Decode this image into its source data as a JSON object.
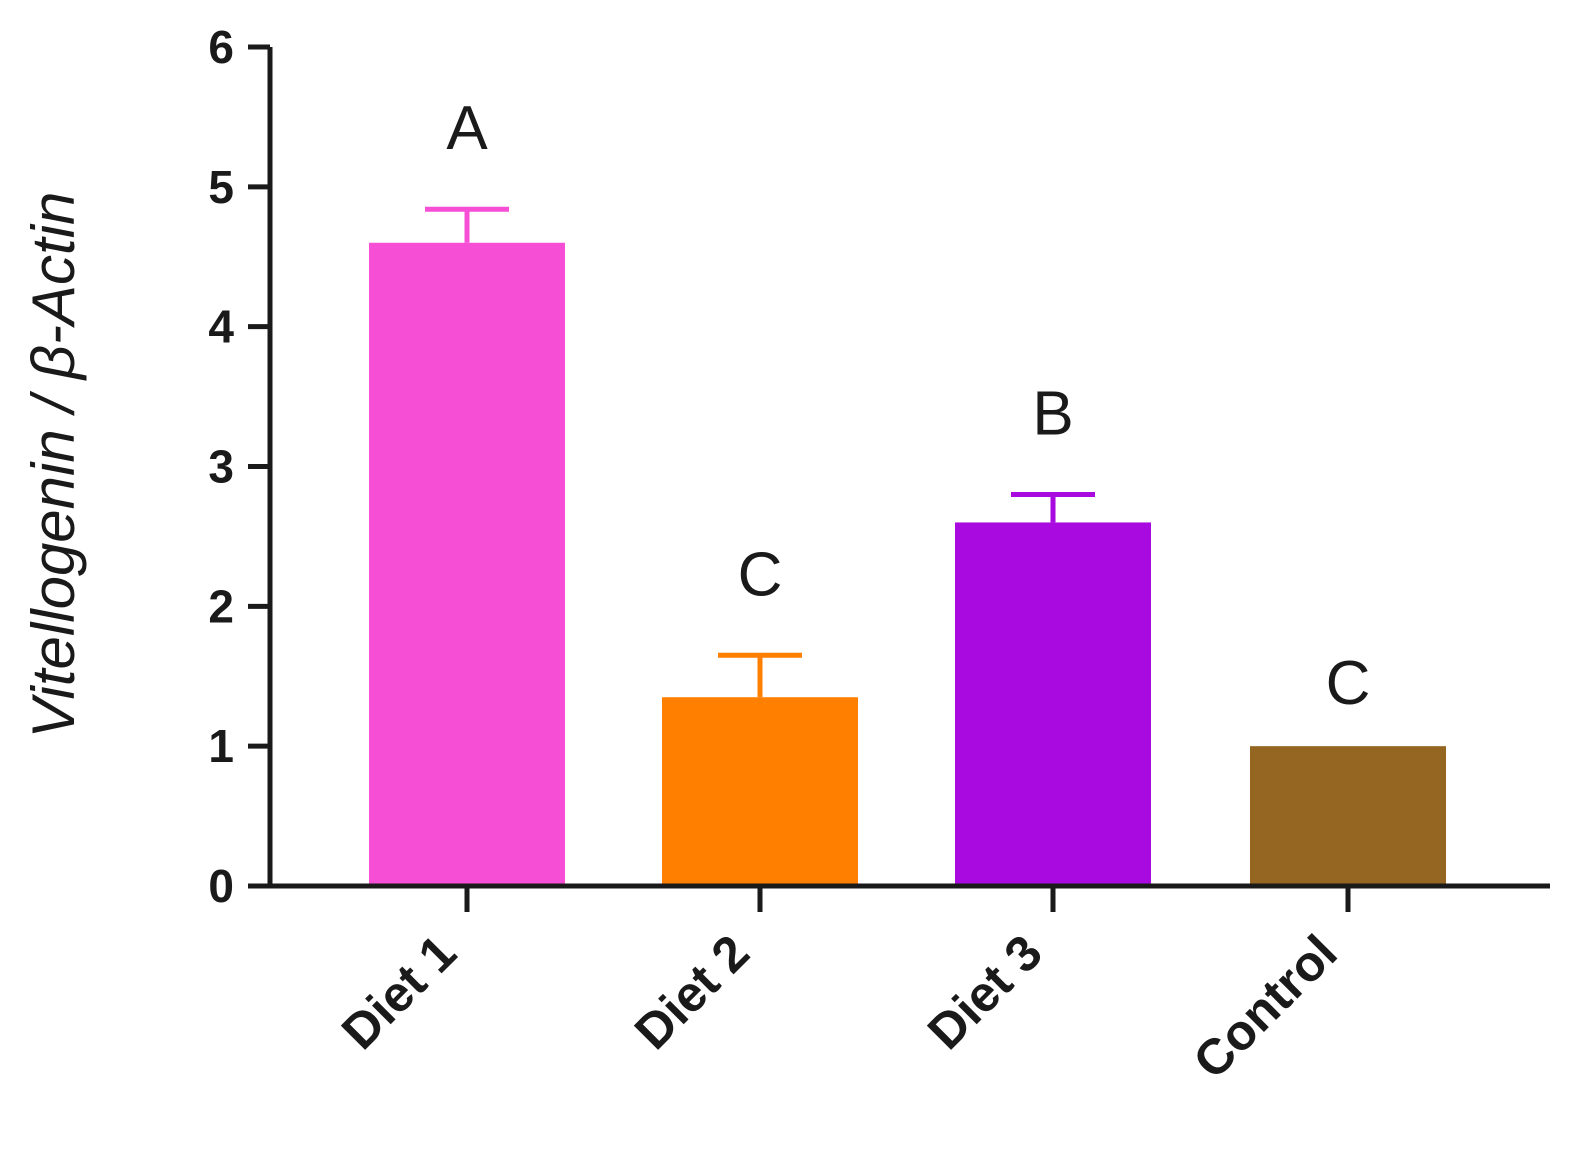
{
  "chart_data": {
    "type": "bar",
    "title": "",
    "xlabel": "",
    "ylabel": "Vitellogenin / β-Actin",
    "ylim": [
      0,
      6
    ],
    "yticks": [
      "0",
      "1",
      "2",
      "3",
      "4",
      "5",
      "6"
    ],
    "categories": [
      "Diet 1",
      "Diet 2",
      "Diet 3",
      "Control"
    ],
    "values": [
      4.6,
      1.35,
      2.6,
      1.0
    ],
    "error_upper": [
      0.24,
      0.3,
      0.2,
      0.0
    ],
    "significance_letters": [
      "A",
      "C",
      "B",
      "C"
    ],
    "colors": [
      "#f64fd6",
      "#ff7f00",
      "#a90ae0",
      "#956522"
    ],
    "grid": false,
    "legend": "none"
  }
}
